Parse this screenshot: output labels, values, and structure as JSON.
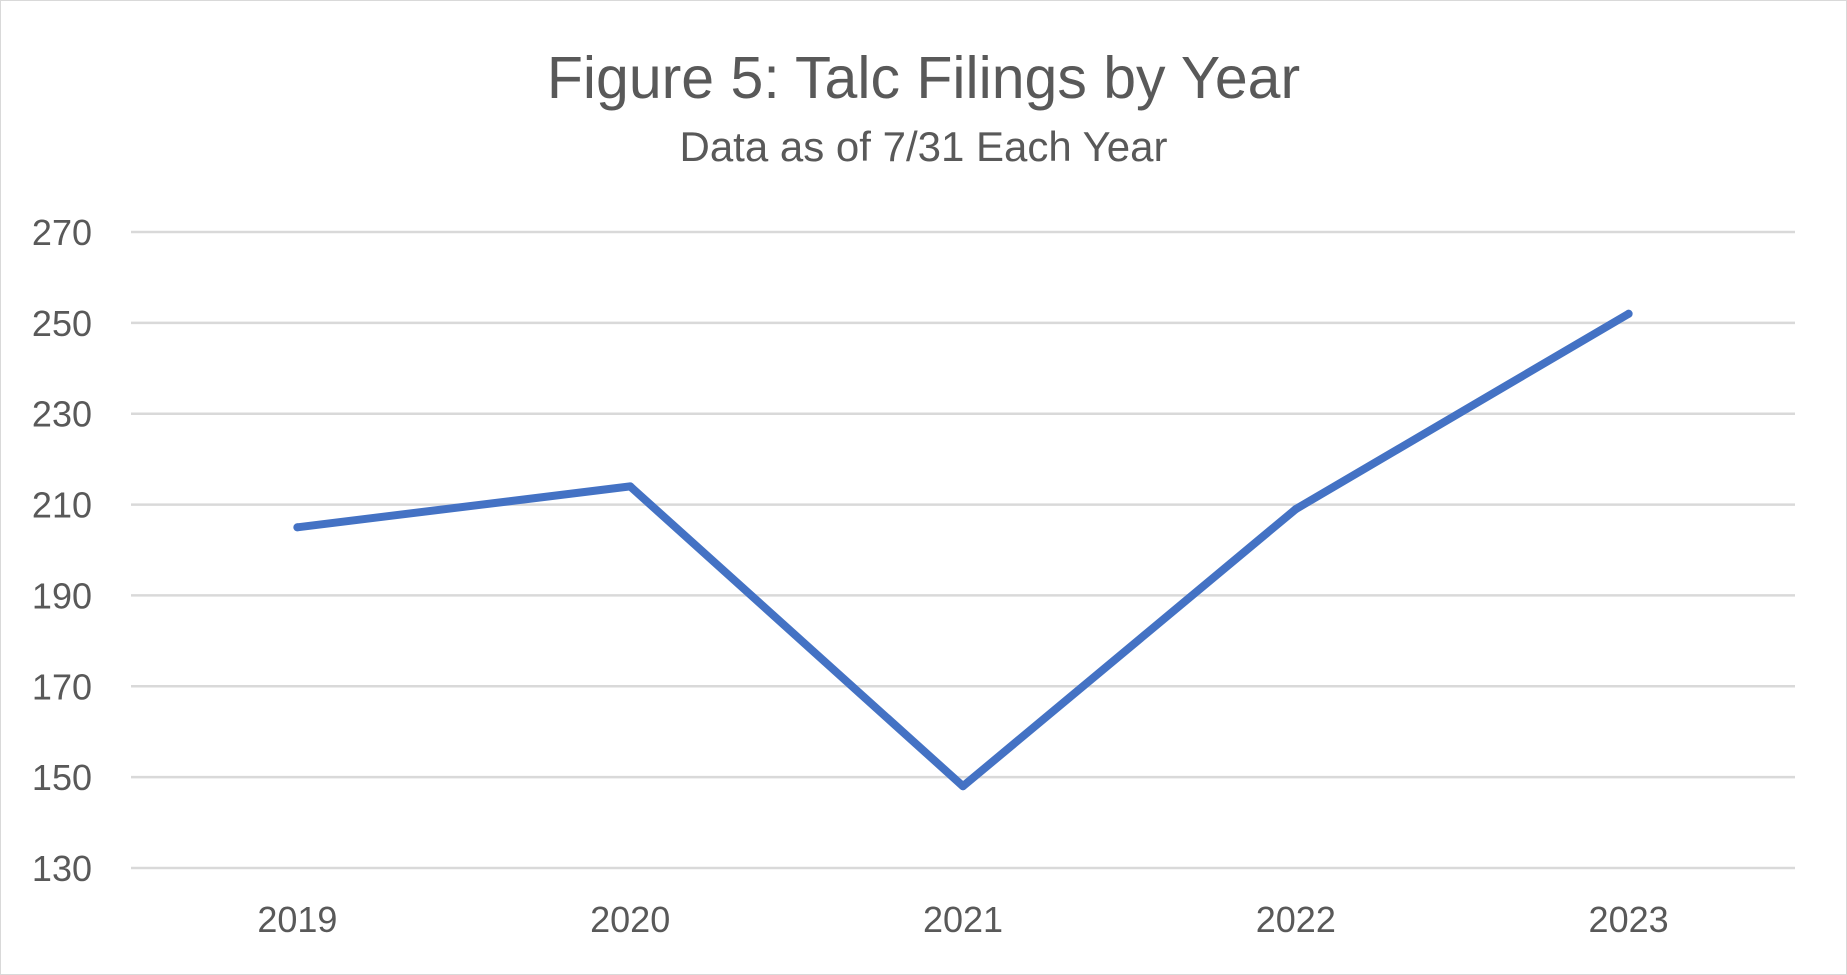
{
  "chart_data": {
    "type": "line",
    "title": "Figure 5: Talc Filings by Year",
    "subtitle": "Data as of 7/31 Each Year",
    "xlabel": "",
    "ylabel": "",
    "categories": [
      "2019",
      "2020",
      "2021",
      "2022",
      "2023"
    ],
    "series": [
      {
        "values": [
          205,
          214,
          148,
          209,
          252
        ],
        "color": "#4472c4"
      }
    ],
    "ylim": [
      130,
      270
    ],
    "yticks": [
      130,
      150,
      170,
      190,
      210,
      230,
      250,
      270
    ],
    "ytick_labels": [
      "130",
      "150",
      "170",
      "190",
      "210",
      "230",
      "250",
      "270"
    ],
    "grid": true,
    "legend": "none"
  }
}
